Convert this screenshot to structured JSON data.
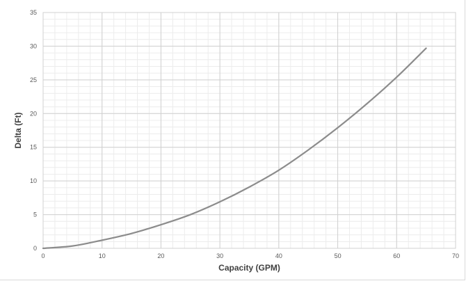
{
  "chart_data": {
    "type": "line",
    "title": "",
    "xlabel": "Capacity (GPM)",
    "ylabel": "Delta (Ft)",
    "xlim": [
      0,
      70
    ],
    "ylim": [
      0,
      35
    ],
    "x_major_ticks": [
      0,
      10,
      20,
      30,
      40,
      50,
      60,
      70
    ],
    "y_major_ticks": [
      0,
      5,
      10,
      15,
      20,
      25,
      30,
      35
    ],
    "x_minor_step": 2,
    "y_minor_step": 1,
    "grid": true,
    "legend": "none",
    "series": [
      {
        "color": "#8c8c8c",
        "x": [
          0,
          5,
          10,
          15,
          20,
          25,
          30,
          35,
          40,
          45,
          50,
          55,
          60,
          65
        ],
        "y": [
          0,
          0.35,
          1.2,
          2.2,
          3.5,
          5.0,
          6.9,
          9.1,
          11.6,
          14.6,
          17.9,
          21.5,
          25.4,
          29.7
        ]
      }
    ]
  }
}
